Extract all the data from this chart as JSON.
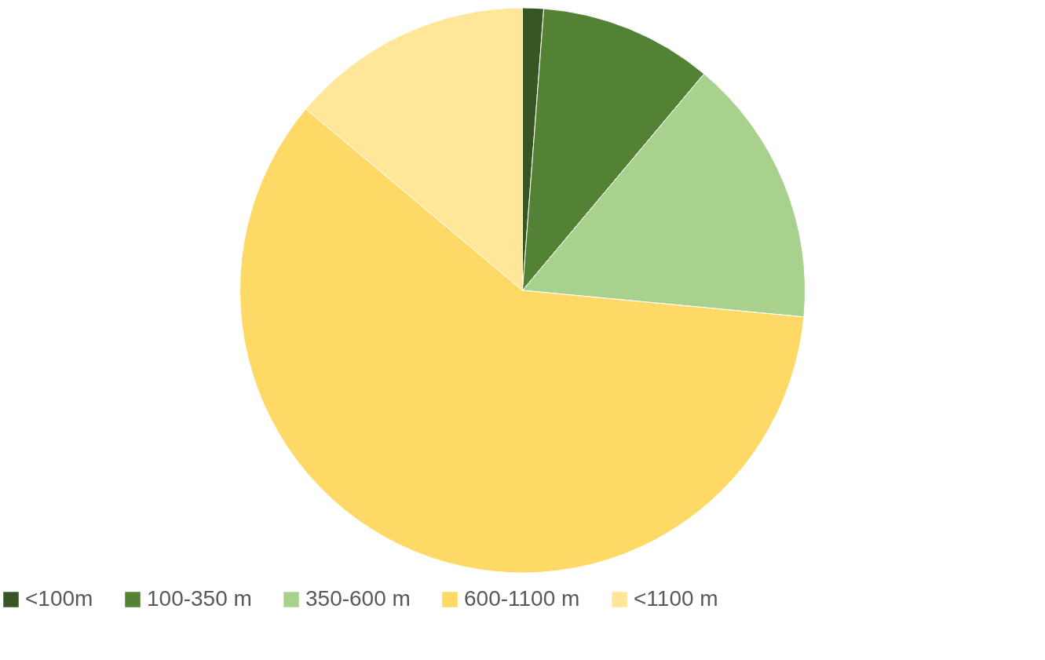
{
  "chart_data": {
    "type": "pie",
    "categories": [
      "<100m",
      "100-350 m",
      "350-600 m",
      "600-1100 m",
      "<1100 m"
    ],
    "values": [
      1.2,
      9.9,
      15.4,
      59.6,
      13.9
    ],
    "colors": [
      "#375623",
      "#548235",
      "#a9d18e",
      "#ffd966",
      "#ffe699"
    ],
    "legend": "bottom"
  }
}
